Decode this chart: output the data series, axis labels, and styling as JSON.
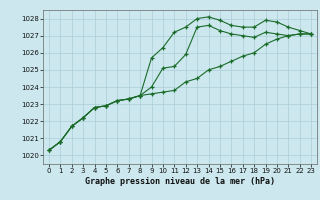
{
  "title": "Graphe pression niveau de la mer (hPa)",
  "background_color": "#cce8ee",
  "grid_color": "#aacdd6",
  "line_color": "#1a6b2a",
  "xlim": [
    -0.5,
    23.5
  ],
  "ylim": [
    1019.5,
    1028.5
  ],
  "yticks": [
    1020,
    1021,
    1022,
    1023,
    1024,
    1025,
    1026,
    1027,
    1028
  ],
  "xticks": [
    0,
    1,
    2,
    3,
    4,
    5,
    6,
    7,
    8,
    9,
    10,
    11,
    12,
    13,
    14,
    15,
    16,
    17,
    18,
    19,
    20,
    21,
    22,
    23
  ],
  "line1": [
    1020.3,
    1020.8,
    1021.7,
    1022.2,
    1022.8,
    1022.9,
    1023.2,
    1023.3,
    1023.5,
    1025.7,
    1026.3,
    1027.2,
    1027.5,
    1028.0,
    1028.1,
    1027.9,
    1027.6,
    1027.5,
    1027.5,
    1027.9,
    1027.8,
    1027.5,
    1027.3,
    1027.1
  ],
  "line2": [
    1020.3,
    1020.8,
    1021.7,
    1022.2,
    1022.8,
    1022.9,
    1023.2,
    1023.3,
    1023.5,
    1024.0,
    1025.1,
    1025.2,
    1025.9,
    1027.5,
    1027.6,
    1027.3,
    1027.1,
    1027.0,
    1026.9,
    1027.2,
    1027.1,
    1027.0,
    1027.1,
    1027.1
  ],
  "line3": [
    1020.3,
    1020.8,
    1021.7,
    1022.2,
    1022.8,
    1022.9,
    1023.2,
    1023.3,
    1023.5,
    1023.6,
    1023.7,
    1023.8,
    1024.3,
    1024.5,
    1025.0,
    1025.2,
    1025.5,
    1025.8,
    1026.0,
    1026.5,
    1026.8,
    1027.0,
    1027.1,
    1027.1
  ],
  "figsize": [
    3.2,
    2.0
  ],
  "dpi": 100
}
